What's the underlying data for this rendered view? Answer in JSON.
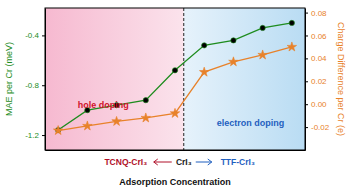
{
  "chart_data": {
    "type": "line",
    "xlabel": "Adsorption Concentration",
    "ylabel": "MAE per Cr (meV)",
    "y2label": "Charge Difference per Cr (e)",
    "categories": [
      null,
      null,
      null,
      null,
      null,
      null,
      null,
      null,
      null
    ],
    "series": [
      {
        "color": "#1e8c1e",
        "marker": "circle",
        "line_style": "solid",
        "values": [
          -1.16,
          -1.0,
          -0.96,
          -0.92,
          -0.68,
          -0.48,
          -0.44,
          -0.34,
          -0.3
        ]
      },
      {
        "color": "#e8822a",
        "marker": "star",
        "line_style": "solid",
        "axis": "y2",
        "values": [
          -0.023,
          -0.019,
          -0.015,
          -0.012,
          -0.008,
          0.028,
          0.037,
          0.043,
          0.05
        ]
      }
    ],
    "ylim": [
      -1.32,
      -0.18
    ],
    "yticks": [
      -1.2,
      -0.8,
      -0.4
    ],
    "y2lim": [
      -0.04,
      0.084
    ],
    "y2ticks": [
      -0.02,
      {
        "value": 0,
        "label": "0.00"
      },
      0.02,
      0.04,
      0.06,
      0.08
    ],
    "grid": false,
    "annotations": [
      {
        "text": "hole doping",
        "color": "#d0142c"
      },
      {
        "text": "electron doping",
        "color": "#1f5fbf"
      },
      {
        "text": "TCNQ-CrI₃",
        "color": "#b0102a"
      },
      {
        "text": "CrI₃",
        "color": "#222222"
      },
      {
        "text": "TTF-CrI₃",
        "color": "#1f5fbf"
      }
    ]
  }
}
